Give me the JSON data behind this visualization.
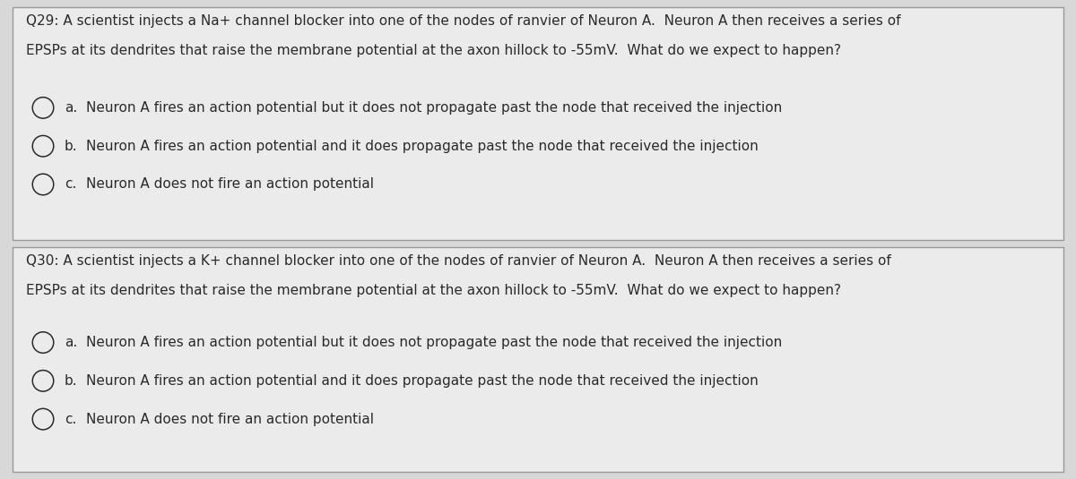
{
  "bg_color": "#d8d8d8",
  "panel_bg": "#ebebeb",
  "panel_border": "#999999",
  "q29_text_line1": "Q29: A scientist injects a Na+ channel blocker into one of the nodes of ranvier of Neuron A.  Neuron A then receives a series of",
  "q29_text_line2": "EPSPs at its dendrites that raise the membrane potential at the axon hillock to -55mV.  What do we expect to happen?",
  "q29_options": [
    [
      "a.",
      "Neuron A fires an action potential but it does not propagate past the node that received the injection"
    ],
    [
      "b.",
      "Neuron A fires an action potential and it does propagate past the node that received the injection"
    ],
    [
      "c.",
      "Neuron A does not fire an action potential"
    ]
  ],
  "q30_text_line1": "Q30: A scientist injects a K+ channel blocker into one of the nodes of ranvier of Neuron A.  Neuron A then receives a series of",
  "q30_text_line2": "EPSPs at its dendrites that raise the membrane potential at the axon hillock to -55mV.  What do we expect to happen?",
  "q30_options": [
    [
      "a.",
      "Neuron A fires an action potential but it does not propagate past the node that received the injection"
    ],
    [
      "b.",
      "Neuron A fires an action potential and it does propagate past the node that received the injection"
    ],
    [
      "c.",
      "Neuron A does not fire an action potential"
    ]
  ],
  "text_color": "#2a2a2a",
  "question_fontsize": 11.0,
  "option_fontsize": 11.0,
  "label_fontsize": 11.0
}
